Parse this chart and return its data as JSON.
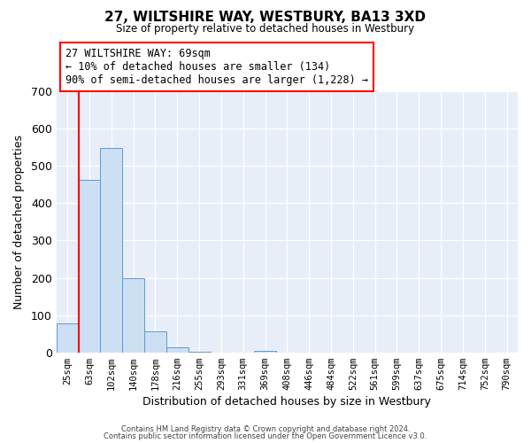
{
  "title": "27, WILTSHIRE WAY, WESTBURY, BA13 3XD",
  "subtitle": "Size of property relative to detached houses in Westbury",
  "xlabel": "Distribution of detached houses by size in Westbury",
  "ylabel": "Number of detached properties",
  "bar_labels": [
    "25sqm",
    "63sqm",
    "102sqm",
    "140sqm",
    "178sqm",
    "216sqm",
    "255sqm",
    "293sqm",
    "331sqm",
    "369sqm",
    "408sqm",
    "446sqm",
    "484sqm",
    "522sqm",
    "561sqm",
    "599sqm",
    "637sqm",
    "675sqm",
    "714sqm",
    "752sqm",
    "790sqm"
  ],
  "bar_values": [
    78,
    462,
    548,
    200,
    57,
    14,
    1,
    0,
    0,
    5,
    0,
    0,
    0,
    0,
    0,
    0,
    0,
    0,
    0,
    0,
    0
  ],
  "bar_color": "#ccdff3",
  "bar_edge_color": "#5b9bd5",
  "ylim": [
    0,
    700
  ],
  "yticks": [
    0,
    100,
    200,
    300,
    400,
    500,
    600,
    700
  ],
  "red_line_x": 1.0,
  "annotation_title": "27 WILTSHIRE WAY: 69sqm",
  "annotation_line1": "← 10% of detached houses are smaller (134)",
  "annotation_line2": "90% of semi-detached houses are larger (1,228) →",
  "footer1": "Contains HM Land Registry data © Crown copyright and database right 2024.",
  "footer2": "Contains public sector information licensed under the Open Government Licence v3.0.",
  "background_color": "#ffffff",
  "plot_bg_color": "#e8eef8"
}
